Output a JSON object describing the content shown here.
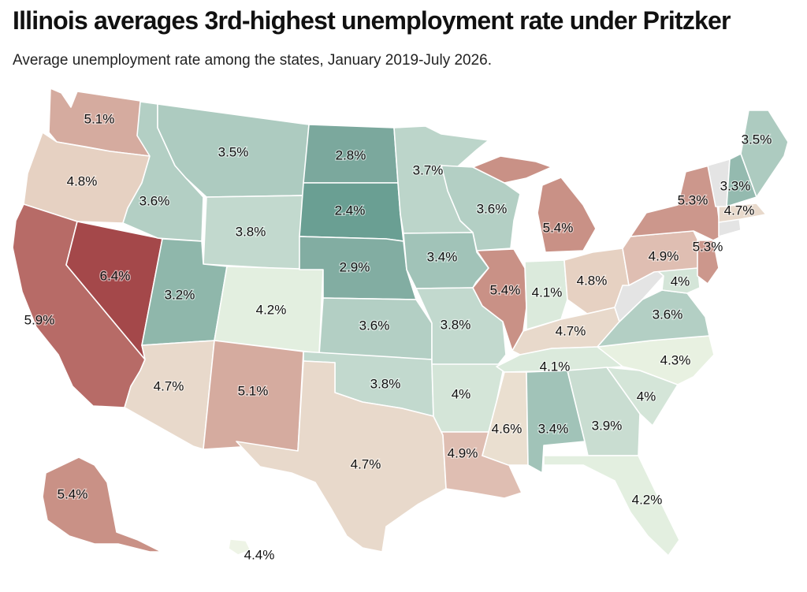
{
  "title": "Illinois averages 3rd-highest unemployment rate under Pritzker",
  "subtitle": "Average unemployment rate among the states, January 2019-July 2026.",
  "color_scale": {
    "2.4": "#6a9f93",
    "2.8": "#7ba89d",
    "2.9": "#82ada2",
    "3.2": "#8fb7ab",
    "3.3": "#94baaf",
    "3.4": "#a1c3b8",
    "3.5": "#adcbc0",
    "3.6": "#b3cfc4",
    "3.7": "#bcd5ca",
    "3.8": "#c2d9ce",
    "3.9": "#c9ddd1",
    "4": "#d4e5d8",
    "4.1": "#dbeadc",
    "4.2": "#e3efe0",
    "4.3": "#e8f1e1",
    "4.4": "#eef4e6",
    "4.6": "#eadfd0",
    "4.7": "#e8d9cb",
    "4.8": "#e6d1c2",
    "4.9": "#dfbeb2",
    "5.1": "#d5ab9f",
    "5.3": "#cc978c",
    "5.4": "#c99186",
    "5.9": "#b76b67",
    "6.4": "#a4484a"
  },
  "chart_data": {
    "type": "map",
    "title": "Illinois averages 3rd-highest unemployment rate under Pritzker",
    "subtitle": "Average unemployment rate among the states, January 2019-July 2026.",
    "unit": "%",
    "states": [
      {
        "state": "Washington",
        "value": 5.1,
        "label": "5.1%"
      },
      {
        "state": "Oregon",
        "value": 4.8,
        "label": "4.8%"
      },
      {
        "state": "California",
        "value": 5.9,
        "label": "5.9%"
      },
      {
        "state": "Nevada",
        "value": 6.4,
        "label": "6.4%"
      },
      {
        "state": "Idaho",
        "value": 3.6,
        "label": "3.6%"
      },
      {
        "state": "Montana",
        "value": 3.5,
        "label": "3.5%"
      },
      {
        "state": "Wyoming",
        "value": 3.8,
        "label": "3.8%"
      },
      {
        "state": "Utah",
        "value": 3.2,
        "label": "3.2%"
      },
      {
        "state": "Arizona",
        "value": 4.7,
        "label": "4.7%"
      },
      {
        "state": "Colorado",
        "value": 4.2,
        "label": "4.2%"
      },
      {
        "state": "New Mexico",
        "value": 5.1,
        "label": "5.1%"
      },
      {
        "state": "North Dakota",
        "value": 2.8,
        "label": "2.8%"
      },
      {
        "state": "South Dakota",
        "value": 2.4,
        "label": "2.4%"
      },
      {
        "state": "Nebraska",
        "value": 2.9,
        "label": "2.9%"
      },
      {
        "state": "Kansas",
        "value": 3.6,
        "label": "3.6%"
      },
      {
        "state": "Oklahoma",
        "value": 3.8,
        "label": "3.8%"
      },
      {
        "state": "Texas",
        "value": 4.7,
        "label": "4.7%"
      },
      {
        "state": "Minnesota",
        "value": 3.7,
        "label": "3.7%"
      },
      {
        "state": "Iowa",
        "value": 3.4,
        "label": "3.4%"
      },
      {
        "state": "Missouri",
        "value": 3.8,
        "label": "3.8%"
      },
      {
        "state": "Arkansas",
        "value": 4,
        "label": "4%"
      },
      {
        "state": "Louisiana",
        "value": 4.9,
        "label": "4.9%"
      },
      {
        "state": "Wisconsin",
        "value": 3.6,
        "label": "3.6%"
      },
      {
        "state": "Illinois",
        "value": 5.4,
        "label": "5.4%"
      },
      {
        "state": "Michigan",
        "value": 5.4,
        "label": "5.4%"
      },
      {
        "state": "Indiana",
        "value": 4.1,
        "label": "4.1%"
      },
      {
        "state": "Ohio",
        "value": 4.8,
        "label": "4.8%"
      },
      {
        "state": "Kentucky",
        "value": 4.7,
        "label": "4.7%"
      },
      {
        "state": "Tennessee",
        "value": 4.1,
        "label": "4.1%"
      },
      {
        "state": "Mississippi",
        "value": 4.6,
        "label": "4.6%"
      },
      {
        "state": "Alabama",
        "value": 3.4,
        "label": "3.4%"
      },
      {
        "state": "Georgia",
        "value": 3.9,
        "label": "3.9%"
      },
      {
        "state": "Florida",
        "value": 4.2,
        "label": "4.2%"
      },
      {
        "state": "South Carolina",
        "value": 4,
        "label": "4%"
      },
      {
        "state": "North Carolina",
        "value": 4.3,
        "label": "4.3%"
      },
      {
        "state": "Virginia",
        "value": 3.6,
        "label": "3.6%"
      },
      {
        "state": "West Virginia",
        "value": null,
        "label": ""
      },
      {
        "state": "Maryland",
        "value": 4,
        "label": "4%"
      },
      {
        "state": "Delaware",
        "value": null,
        "label": ""
      },
      {
        "state": "Pennsylvania",
        "value": 4.9,
        "label": "4.9%"
      },
      {
        "state": "New Jersey",
        "value": 5.3,
        "label": "5.3%"
      },
      {
        "state": "New York",
        "value": 5.3,
        "label": "5.3%"
      },
      {
        "state": "Connecticut",
        "value": null,
        "label": ""
      },
      {
        "state": "Rhode Island",
        "value": null,
        "label": ""
      },
      {
        "state": "Massachusetts",
        "value": 4.7,
        "label": "4.7%"
      },
      {
        "state": "Vermont",
        "value": null,
        "label": ""
      },
      {
        "state": "New Hampshire",
        "value": 3.3,
        "label": "3.3%"
      },
      {
        "state": "Maine",
        "value": 3.5,
        "label": "3.5%"
      },
      {
        "state": "Alaska",
        "value": 5.4,
        "label": "5.4%"
      },
      {
        "state": "Hawaii",
        "value": 4.4,
        "label": "4.4%"
      }
    ]
  }
}
